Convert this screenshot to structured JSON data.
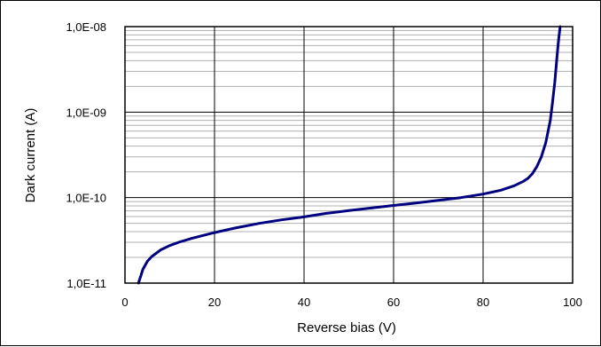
{
  "chart_data": {
    "type": "line",
    "title": "",
    "xlabel": "Reverse bias (V)",
    "ylabel": "Dark current (A)",
    "x_ticks": [
      "0",
      "20",
      "40",
      "60",
      "80",
      "100"
    ],
    "y_ticks": [
      "1,0E-11",
      "1,0E-10",
      "1,0E-09",
      "1,0E-08"
    ],
    "xlim": [
      0,
      100
    ],
    "ylim": [
      1e-11,
      1e-08
    ],
    "y_scale": "log",
    "grid": true,
    "legend": "none",
    "line_color": "#000080",
    "series": [
      {
        "x": [
          3,
          3.5,
          4,
          5,
          6,
          8,
          10,
          12,
          15,
          20,
          25,
          30,
          35,
          40,
          45,
          50,
          55,
          60,
          65,
          70,
          75,
          80,
          84,
          87,
          89,
          90,
          91,
          92,
          93,
          94,
          95,
          95.5,
          96,
          96.3,
          96.6,
          96.9,
          97.2
        ],
        "y": [
          1e-11,
          1.2e-11,
          1.45e-11,
          1.8e-11,
          2.05e-11,
          2.45e-11,
          2.75e-11,
          3e-11,
          3.35e-11,
          3.9e-11,
          4.45e-11,
          5e-11,
          5.5e-11,
          5.95e-11,
          6.55e-11,
          7.05e-11,
          7.55e-11,
          8.1e-11,
          8.65e-11,
          9.3e-11,
          1e-10,
          1.1e-10,
          1.22e-10,
          1.38e-10,
          1.55e-10,
          1.68e-10,
          1.9e-10,
          2.3e-10,
          3e-10,
          4.4e-10,
          8e-10,
          1.3e-09,
          2.2e-09,
          3.3e-09,
          5e-09,
          7.2e-09,
          1e-08
        ]
      }
    ]
  }
}
